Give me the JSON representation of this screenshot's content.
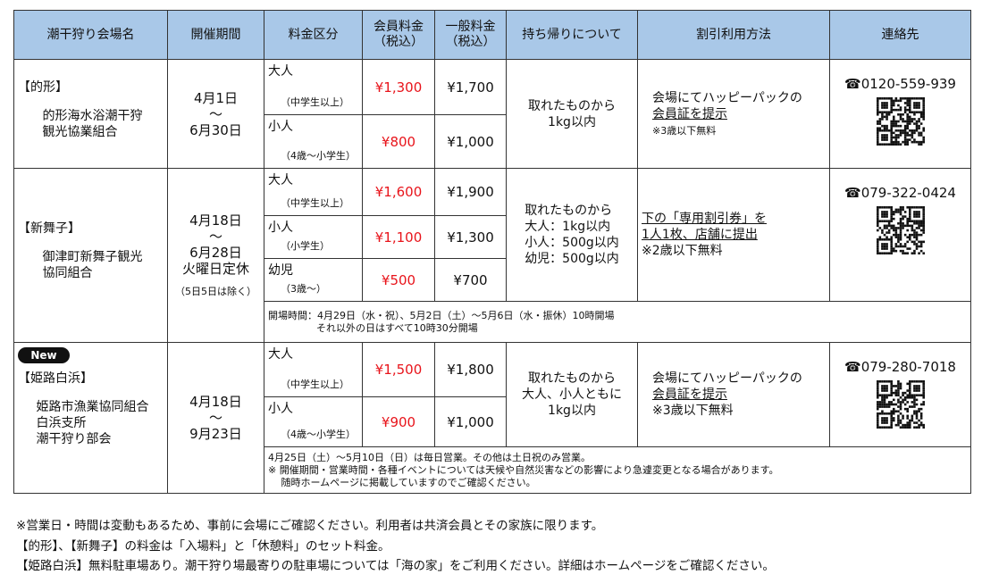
{
  "headers": [
    "潮干狩り会場名",
    "開催期間",
    "料金区分",
    "会員料金\n（税込）",
    "一般料金\n（税込）",
    "持ち帰りについて",
    "割引利用方法",
    "連絡先"
  ],
  "venues": [
    {
      "tag": "【的形】",
      "org": "的形海水浴潮干狩\n観光協業組合",
      "period": [
        "4月1日",
        "～",
        "6月30日"
      ],
      "fees": [
        {
          "type": "大人",
          "sub": "（中学生以上）",
          "member": "¥1,300",
          "general": "¥1,700"
        },
        {
          "type": "小人",
          "sub": "（4歳～小学生）",
          "member": "¥800",
          "general": "¥1,000"
        }
      ],
      "takeout": [
        "取れたものから",
        "1kg以内"
      ],
      "discount": [
        "会場にてハッピーパックの",
        "会員証を提示",
        "※3歳以下無料"
      ],
      "tel": "0120-559-939"
    },
    {
      "tag": "【新舞子】",
      "org": "御津町新舞子観光\n協同組合",
      "period": [
        "4月18日",
        "～",
        "6月28日",
        "火曜日定休"
      ],
      "period_note": "（5日5日は除く）",
      "fees": [
        {
          "type": "大人",
          "sub": "（中学生以上）",
          "member": "¥1,600",
          "general": "¥1,900"
        },
        {
          "type": "小人",
          "sub": "（小学生）",
          "member": "¥1,100",
          "general": "¥1,300"
        },
        {
          "type": "幼児",
          "sub": "（3歳～）",
          "member": "¥500",
          "general": "¥700"
        }
      ],
      "takeout": [
        "取れたものから",
        "大人：1kg以内",
        "小人：500g以内",
        "幼児：500g以内"
      ],
      "discount": [
        "下の「専用割引券」を",
        "1人1枚、店舗に提出",
        "※2歳以下無料"
      ],
      "tel": "079-322-0424",
      "note": [
        "開場時間：4月29日（水・祝）、5月2日（土）～5月6日（水・振休）10時開場",
        "それ以外の日はすべて10時30分開場"
      ]
    },
    {
      "badge": "New",
      "tag": "【姫路白浜】",
      "org": "姫路市漁業協同組合\n白浜支所\n潮干狩り部会",
      "period": [
        "4月18日",
        "～",
        "9月23日"
      ],
      "fees": [
        {
          "type": "大人",
          "sub": "（中学生以上）",
          "member": "¥1,500",
          "general": "¥1,800"
        },
        {
          "type": "小人",
          "sub": "（4歳～小学生）",
          "member": "¥900",
          "general": "¥1,000"
        }
      ],
      "takeout": [
        "取れたものから",
        "大人、小人ともに",
        "1kg以内"
      ],
      "discount": [
        "会場にてハッピーパックの",
        "会員証を提示",
        "※3歳以下無料"
      ],
      "tel": "079-280-7018",
      "note": [
        "4月25日（土）～5月10日（日）は毎日営業。その他は土日祝のみ営業。",
        "※ 開催期間・営業時間・各種イベントについては天候や自然災害などの影響により急遽変更となる場合があります。",
        "　 随時ホームページに掲載していますのでご確認ください。"
      ]
    }
  ],
  "footer": [
    "※営業日・時間は変動もあるため、事前に会場にご確認ください。利用者は共済会員とその家族に限ります。",
    "【的形】、【新舞子】の料金は「入場料」と「休憩料」のセット料金。",
    "【姫路白浜】無料駐車場あり。潮干狩り場最寄りの駐車場については「海の家」をご利用ください。詳細はホームページをご確認ください。"
  ],
  "colors": {
    "header": "#a9c8e8",
    "member_price": "#e8141b"
  },
  "icons": {
    "phone": "telephone-icon",
    "qr": "qr-code"
  }
}
